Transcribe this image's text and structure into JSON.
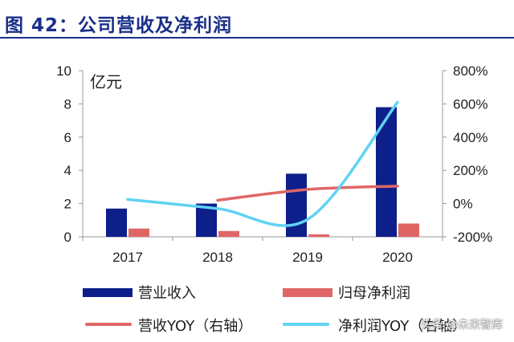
{
  "header": {
    "title": "图 42：公司营收及净利润"
  },
  "unit_label": "亿元",
  "watermark": "头条 @未来智库",
  "colors": {
    "revenue": "#0c1f8a",
    "profit": "#e06666",
    "rev_yoy": "#e06666",
    "profit_yoy": "#5fd3f3"
  },
  "chart_data": {
    "type": "bar",
    "title": "公司营收及净利润",
    "categories": [
      "2017",
      "2018",
      "2019",
      "2020"
    ],
    "y_left": {
      "label": "亿元",
      "ylim": [
        0,
        10
      ],
      "ticks": [
        0,
        2,
        4,
        6,
        8,
        10
      ]
    },
    "y_right": {
      "ylim": [
        -200,
        800
      ],
      "ticks": [
        "-200%",
        "0%",
        "200%",
        "400%",
        "600%",
        "800%"
      ],
      "tick_values": [
        -200,
        0,
        200,
        400,
        600,
        800
      ]
    },
    "series": [
      {
        "name": "营业收入",
        "type": "bar",
        "axis": "left",
        "values": [
          1.7,
          2.0,
          3.8,
          7.8
        ]
      },
      {
        "name": "归母净利润",
        "type": "bar",
        "axis": "left",
        "values": [
          0.5,
          0.35,
          0.15,
          0.8
        ]
      },
      {
        "name": "营收YOY（右轴）",
        "type": "line",
        "axis": "right",
        "values": [
          null,
          20,
          85,
          105
        ]
      },
      {
        "name": "净利润YOY（右轴）",
        "type": "line",
        "axis": "right",
        "values": [
          25,
          -30,
          -95,
          610
        ]
      }
    ]
  }
}
